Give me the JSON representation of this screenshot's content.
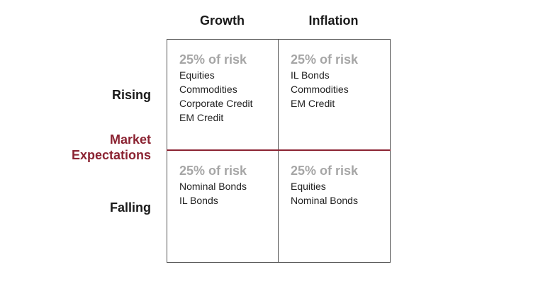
{
  "column_headers": [
    "Growth",
    "Inflation"
  ],
  "row_headers": [
    "Rising",
    "Falling"
  ],
  "axis_label": [
    "Market",
    "Expectations"
  ],
  "cells": [
    [
      {
        "risk": "25% of risk",
        "items": [
          "Equities",
          "Commodities",
          "Corporate Credit",
          "EM Credit"
        ]
      },
      {
        "risk": "25% of risk",
        "items": [
          "IL Bonds",
          "Commodities",
          "EM Credit"
        ]
      }
    ],
    [
      {
        "risk": "25% of risk",
        "items": [
          "Nominal Bonds",
          "IL Bonds"
        ]
      },
      {
        "risk": "25% of risk",
        "items": [
          "Equities",
          "Nominal Bonds"
        ]
      }
    ]
  ]
}
